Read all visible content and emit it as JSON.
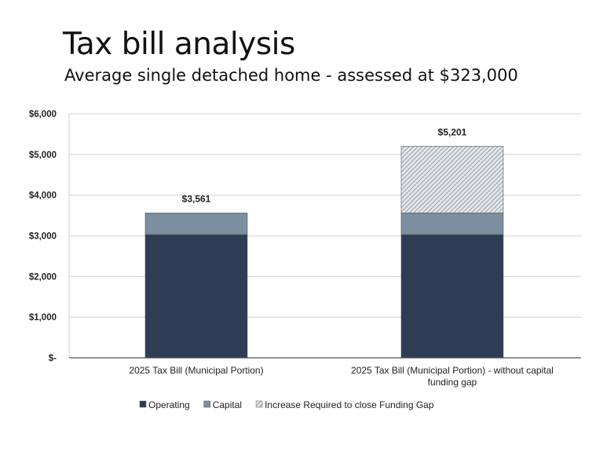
{
  "chart_data": {
    "type": "bar",
    "stacked": true,
    "title": "Tax bill analysis",
    "subtitle": "Average single detached home - assessed at $323,000",
    "categories": [
      "2025 Tax Bill (Municipal Portion)",
      "2025 Tax Bill (Municipal Portion) - without capital funding gap"
    ],
    "category_lines": [
      [
        "2025 Tax Bill (Municipal Portion)"
      ],
      [
        "2025 Tax Bill (Municipal Portion) - without capital",
        "funding gap"
      ]
    ],
    "series": [
      {
        "name": "Operating",
        "values": [
          3030,
          3030
        ],
        "color": "#2e3d55"
      },
      {
        "name": "Capital",
        "values": [
          531,
          531
        ],
        "color": "#7b8fa0"
      },
      {
        "name": "Increase Required to close Funding Gap",
        "values": [
          0,
          1640
        ],
        "color": "#c9cfd4",
        "pattern": "hatch"
      }
    ],
    "totals": [
      "$3,561",
      "$5,201"
    ],
    "ylim": [
      0,
      6000
    ],
    "yticks": [
      0,
      1000,
      2000,
      3000,
      4000,
      5000,
      6000
    ],
    "ytick_labels": [
      "$-",
      "$1,000",
      "$2,000",
      "$3,000",
      "$4,000",
      "$5,000",
      "$6,000"
    ],
    "grid": true,
    "legend": "bottom"
  }
}
